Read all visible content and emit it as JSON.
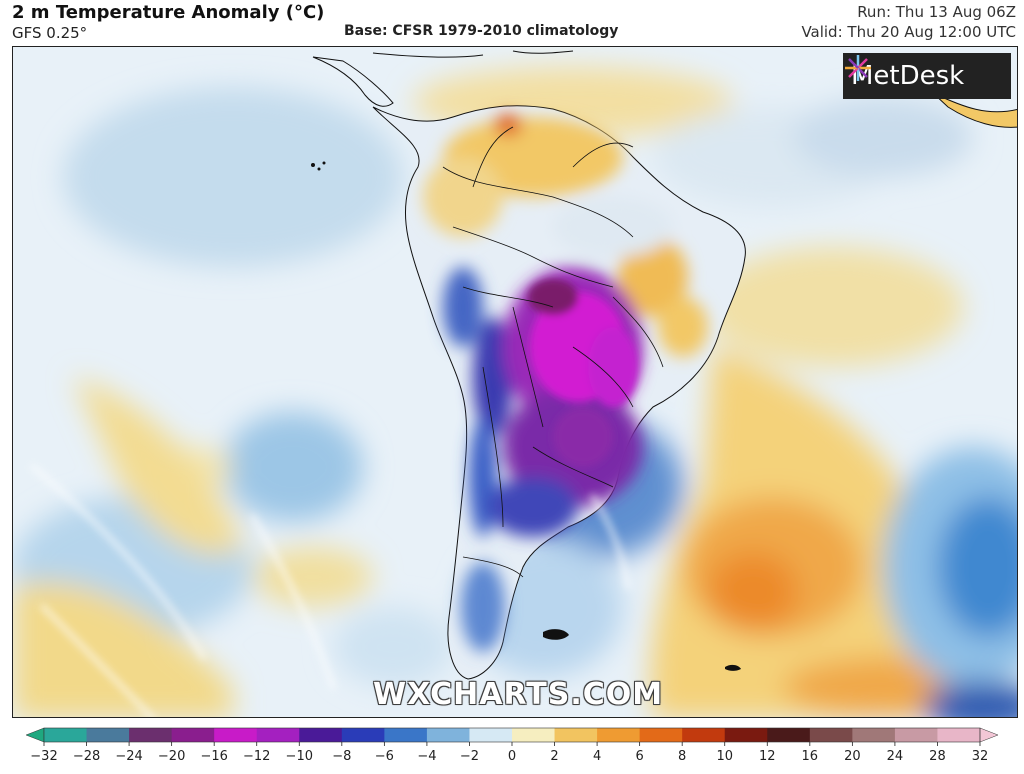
{
  "header": {
    "title": "2 m Temperature Anomaly (°C)",
    "model": "GFS 0.25°",
    "base": "Base: CFSR 1979-2010 climatology",
    "run": "Run: Thu 13 Aug 06Z",
    "valid": "Valid: Thu 20 Aug 12:00 UTC"
  },
  "logo": {
    "text": "MetDesk",
    "icon": "starburst-icon"
  },
  "watermark": "WXCHARTS.COM",
  "legend": {
    "ticks": [
      "−32",
      "−28",
      "−24",
      "−20",
      "−16",
      "−12",
      "−10",
      "−8",
      "−6",
      "−4",
      "−2",
      "0",
      "2",
      "4",
      "6",
      "8",
      "10",
      "12",
      "16",
      "20",
      "24",
      "28",
      "32"
    ],
    "colors": [
      "#1fa880",
      "#2aa79a",
      "#4a7a9c",
      "#6b2f6e",
      "#8a1e8e",
      "#c81bc8",
      "#a420c0",
      "#4a1a98",
      "#2a3cb8",
      "#3a76c8",
      "#7fb3dc",
      "#d6e9f4",
      "#f6eec0",
      "#f2c460",
      "#ef9b32",
      "#e36a18",
      "#c23a0e",
      "#7a1a10",
      "#4a1a1a",
      "#7a4a4a",
      "#a07878",
      "#c89aa4",
      "#e8b6c8",
      "#f3c7d6"
    ]
  }
}
